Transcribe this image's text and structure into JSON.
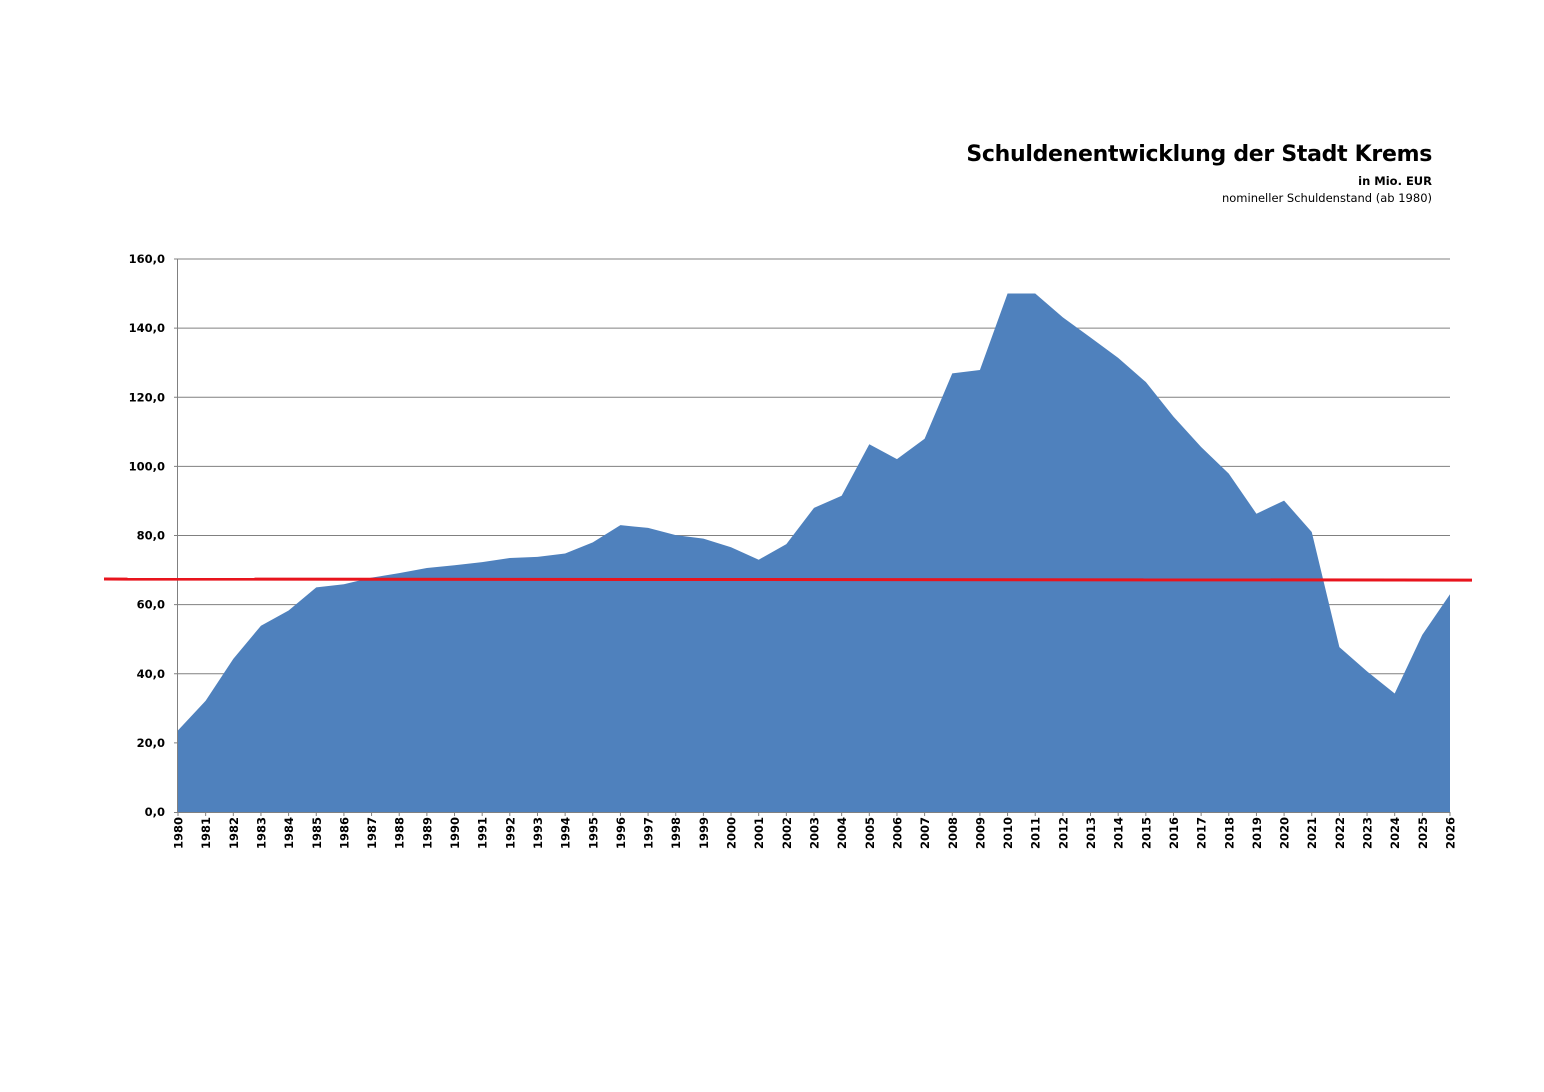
{
  "header": {
    "title": "Schuldenentwicklung der Stadt Krems",
    "subtitle": "in Mio. EUR",
    "note": "nomineller Schuldenstand (ab 1980)"
  },
  "colors": {
    "area_fill": "#4f81bd",
    "reference_line": "#e8141d",
    "gridline": "#808080",
    "axis": "#808080"
  },
  "chart_data": {
    "type": "area",
    "title": "Schuldenentwicklung der Stadt Krems",
    "subtitle": "in Mio. EUR",
    "xlabel": "",
    "ylabel": "",
    "ylim": [
      0,
      160
    ],
    "yticks": [
      0,
      20,
      40,
      60,
      80,
      100,
      120,
      140,
      160
    ],
    "ytick_labels": [
      "0,0",
      "20,0",
      "40,0",
      "60,0",
      "80,0",
      "100,0",
      "120,0",
      "140,0",
      "160,0"
    ],
    "grid": true,
    "legend": "none",
    "categories": [
      "1980",
      "1981",
      "1982",
      "1983",
      "1984",
      "1985",
      "1986",
      "1987",
      "1988",
      "1989",
      "1990",
      "1991",
      "1992",
      "1993",
      "1994",
      "1995",
      "1996",
      "1997",
      "1998",
      "1999",
      "2000",
      "2001",
      "2002",
      "2003",
      "2004",
      "2005",
      "2006",
      "2007",
      "2008",
      "2009",
      "2010",
      "2011",
      "2012",
      "2013",
      "2014",
      "2015",
      "2016",
      "2017",
      "2018",
      "2019",
      "2020",
      "2021",
      "2022",
      "2023",
      "2024",
      "2025",
      "2026"
    ],
    "series": [
      {
        "values": [
          23.6,
          32.2,
          44.3,
          53.9,
          58.3,
          65.0,
          65.9,
          67.8,
          69.1,
          70.6,
          71.4,
          72.3,
          73.5,
          73.8,
          74.8,
          78.0,
          83.0,
          82.2,
          80.1,
          79.1,
          76.6,
          73.0,
          77.5,
          88.0,
          91.5,
          106.4,
          102.1,
          108.0,
          126.9,
          127.9,
          150.0,
          150.0,
          143.1,
          137.3,
          131.4,
          124.4,
          114.4,
          105.6,
          97.9,
          86.3,
          90.1,
          81.0,
          47.7,
          40.7,
          34.3,
          51.3,
          63.0
        ]
      }
    ],
    "reference_line": {
      "value_start": 67.4,
      "value_end": 67.1
    }
  }
}
